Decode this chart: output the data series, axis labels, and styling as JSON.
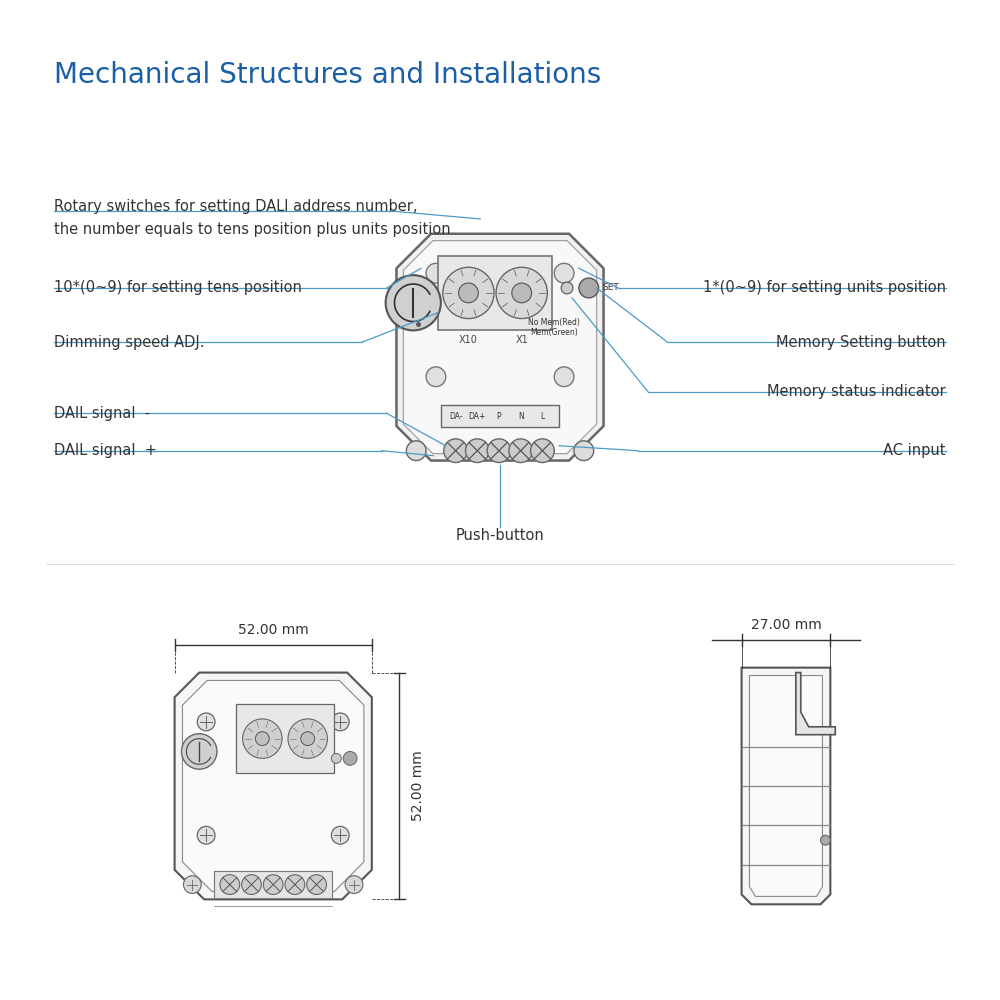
{
  "title": "Mechanical Structures and Installations",
  "title_color": "#1a5fa8",
  "title_fontsize": 20,
  "bg_color": "#ffffff",
  "line_color": "#666666",
  "annotation_color": "#4a9cc7",
  "text_color": "#333333",
  "dim_color": "#333333",
  "dim_top_w": "52.00 mm",
  "dim_top_h": "52.00 mm",
  "dim_side_w": "27.00 mm"
}
